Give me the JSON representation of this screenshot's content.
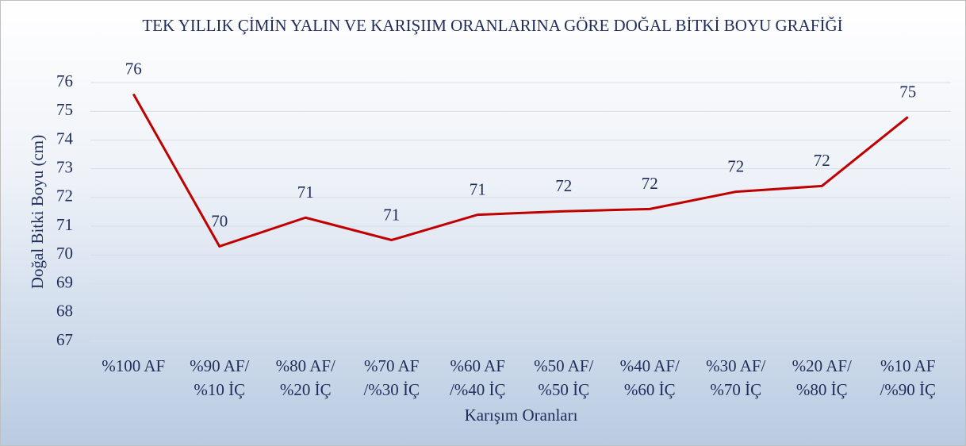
{
  "chart_data": {
    "type": "line",
    "title": "TEK YILLIK ÇİMİN YALIN VE KARIŞIIM ORANLARINA GÖRE DOĞAL BİTKİ BOYU GRAFİĞİ",
    "x_label": "Karışım Oranları",
    "y_label": "Doğal Bitki Boyu (cm)",
    "categories": [
      [
        "%100 AF"
      ],
      [
        "%90 AF/",
        "%10 İÇ"
      ],
      [
        "%80 AF/",
        "%20 İÇ"
      ],
      [
        "%70 AF",
        "/%30 İÇ"
      ],
      [
        "%60 AF",
        "/%40 İÇ"
      ],
      [
        "%50 AF/",
        "%50 İÇ"
      ],
      [
        "%40 AF/",
        "%60 İÇ"
      ],
      [
        "%30 AF/",
        "%70 İÇ"
      ],
      [
        "%20 AF/",
        "%80 İÇ"
      ],
      [
        "%10 AF",
        "/%90 İÇ"
      ]
    ],
    "series": [
      {
        "name": "Doğal Bitki Boyu",
        "color": "#c00000",
        "values": [
          75.6,
          70.3,
          71.3,
          70.52,
          71.4,
          71.52,
          71.6,
          72.2,
          72.4,
          74.8
        ],
        "value_labels": [
          "76",
          "70",
          "71",
          "71",
          "71",
          "72",
          "72",
          "72",
          "72",
          "75"
        ]
      }
    ],
    "ylim": [
      67,
      76
    ],
    "yticks": [
      67,
      68,
      69,
      70,
      71,
      72,
      73,
      74,
      75,
      76
    ],
    "grid": true
  }
}
